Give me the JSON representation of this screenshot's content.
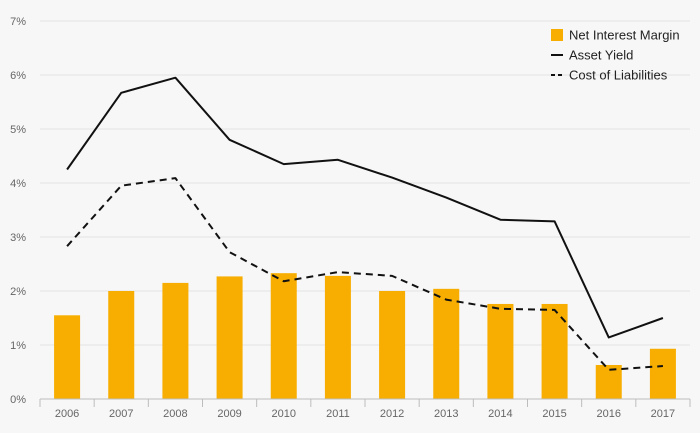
{
  "chart_data": {
    "type": "bar+line",
    "categories": [
      "2006",
      "2007",
      "2008",
      "2009",
      "2010",
      "2011",
      "2012",
      "2013",
      "2014",
      "2015",
      "2016",
      "2017"
    ],
    "y_ticks": [
      "0%",
      "1%",
      "2%",
      "3%",
      "4%",
      "5%",
      "6%",
      "7%"
    ],
    "ylim": [
      0,
      7
    ],
    "grid": true,
    "legend_position": "top-right",
    "colors": {
      "bar": "#f7ae00",
      "line": "#111111",
      "grid": "#e3e3e3",
      "axis": "#bdbdbd"
    },
    "series": [
      {
        "name": "Net Interest Margin",
        "kind": "bar",
        "values": [
          1.55,
          2.0,
          2.15,
          2.27,
          2.33,
          2.28,
          2.0,
          2.04,
          1.76,
          1.76,
          0.63,
          0.93
        ]
      },
      {
        "name": "Asset Yield",
        "kind": "line-solid",
        "values": [
          4.25,
          5.67,
          5.95,
          4.8,
          4.35,
          4.43,
          4.1,
          3.73,
          3.32,
          3.29,
          1.14,
          1.5
        ]
      },
      {
        "name": "Cost of Liabilities",
        "kind": "line-dashed",
        "values": [
          2.83,
          3.95,
          4.09,
          2.72,
          2.18,
          2.35,
          2.28,
          1.84,
          1.67,
          1.65,
          0.54,
          0.61
        ]
      }
    ]
  }
}
